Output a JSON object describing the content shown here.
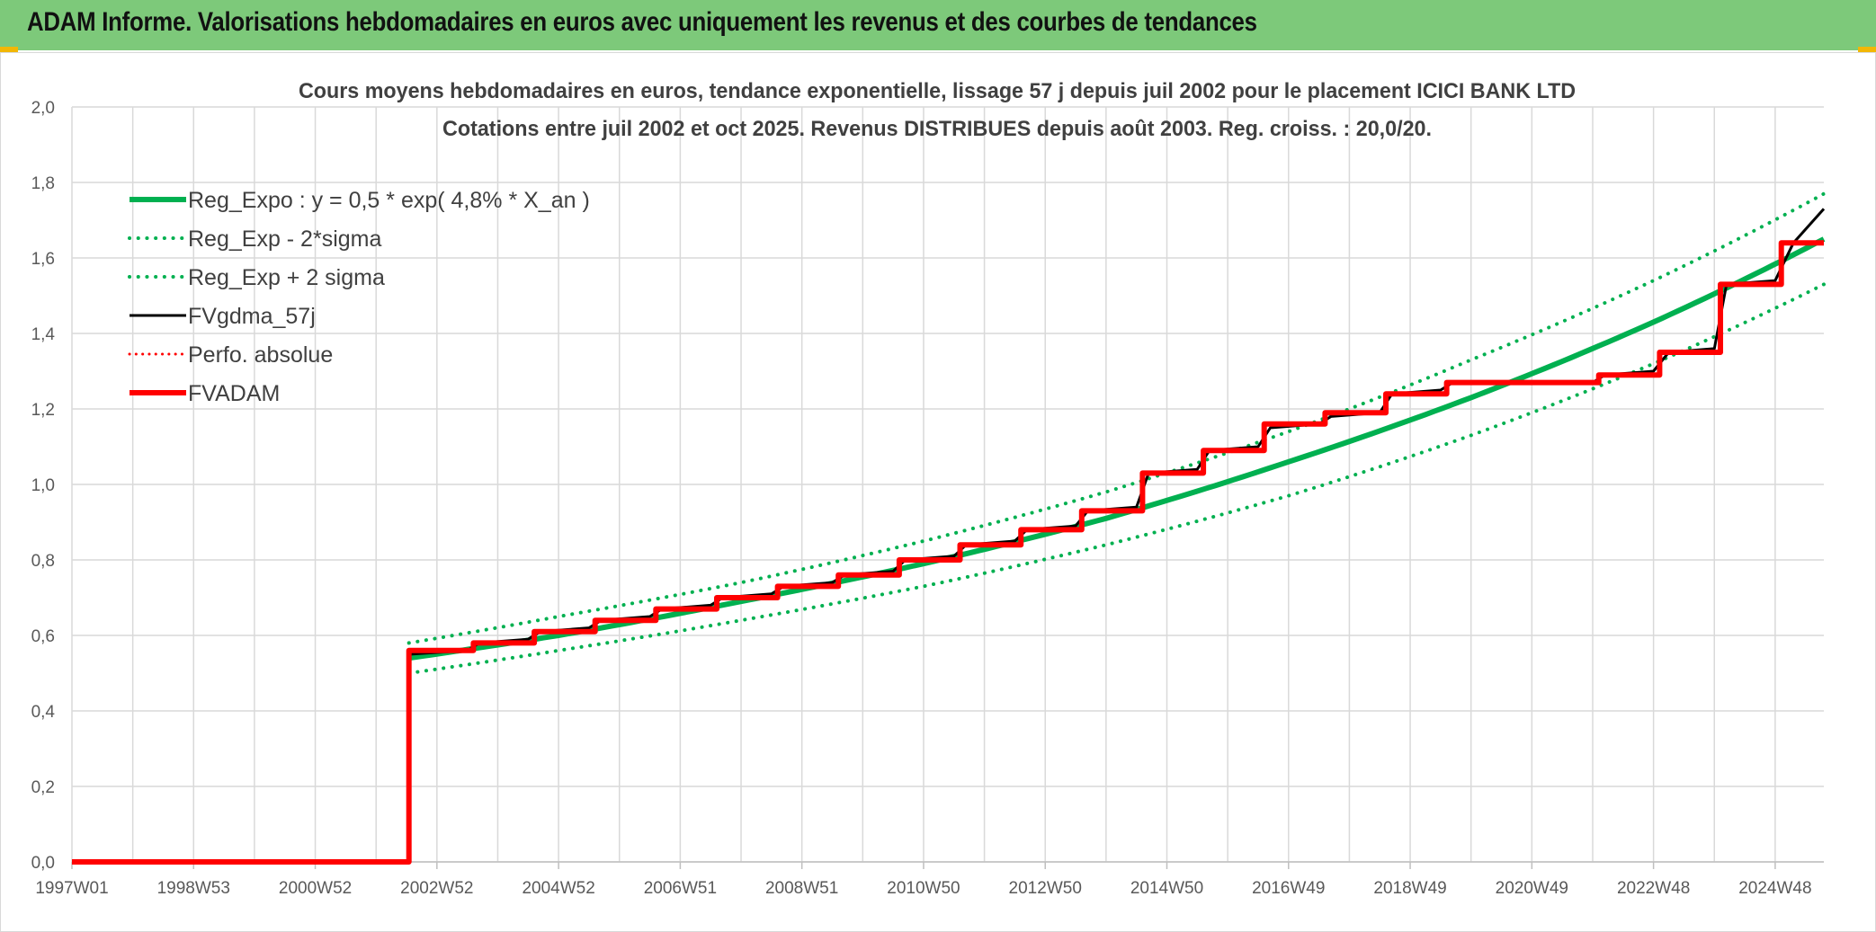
{
  "header": {
    "title": "ADAM Informe. Valorisations hebdomadaires en euros avec uniquement les revenus et des courbes de tendances",
    "background": "#7dc97a"
  },
  "chart_data": {
    "type": "line",
    "title": "Cours moyens hebdomadaires en euros, tendance exponentielle, lissage 57 j depuis juil 2002 pour le placement ICICI BANK LTD",
    "subtitle": "Cotations entre juil 2002 et oct 2025. Revenus DISTRIBUES depuis août 2003. Reg. croiss. : 20,0/20.",
    "xlabel": "",
    "ylabel": "",
    "xlim": [
      1997.0,
      2025.8
    ],
    "ylim": [
      0,
      2.0
    ],
    "y_ticks": [
      "0,0",
      "0,2",
      "0,4",
      "0,6",
      "0,8",
      "1,0",
      "1,2",
      "1,4",
      "1,6",
      "1,8",
      "2,0"
    ],
    "x_ticks": [
      {
        "label": "1997W01",
        "x": 1997.0
      },
      {
        "label": "1998W53",
        "x": 1999.0
      },
      {
        "label": "2000W52",
        "x": 2001.0
      },
      {
        "label": "2002W52",
        "x": 2003.0
      },
      {
        "label": "2004W52",
        "x": 2005.0
      },
      {
        "label": "2006W51",
        "x": 2007.0
      },
      {
        "label": "2008W51",
        "x": 2009.0
      },
      {
        "label": "2010W50",
        "x": 2011.0
      },
      {
        "label": "2012W50",
        "x": 2013.0
      },
      {
        "label": "2014W50",
        "x": 2015.0
      },
      {
        "label": "2016W49",
        "x": 2017.0
      },
      {
        "label": "2018W49",
        "x": 2019.0
      },
      {
        "label": "2020W49",
        "x": 2021.0
      },
      {
        "label": "2022W48",
        "x": 2023.0
      },
      {
        "label": "2024W48",
        "x": 2025.0
      }
    ],
    "grid": true,
    "legend_position": "top-left",
    "series": [
      {
        "name": "Reg_Expo : y = 0,5 * exp( 4,8% *  X_an )",
        "color": "#00b050",
        "style": "solid",
        "width": 6,
        "x": [
          2002.54,
          2005,
          2008,
          2011,
          2014,
          2017,
          2020,
          2023,
          2025.8
        ],
        "y": [
          0.54,
          0.6,
          0.69,
          0.79,
          0.91,
          1.06,
          1.23,
          1.43,
          1.65
        ]
      },
      {
        "name": "Reg_Exp - 2*sigma",
        "color": "#00b050",
        "style": "dotted",
        "width": 4,
        "x": [
          2002.54,
          2005,
          2008,
          2011,
          2014,
          2017,
          2020,
          2023,
          2025.8
        ],
        "y": [
          0.5,
          0.56,
          0.64,
          0.73,
          0.84,
          0.97,
          1.13,
          1.32,
          1.53
        ]
      },
      {
        "name": "Reg_Exp + 2 sigma",
        "color": "#00b050",
        "style": "dotted",
        "width": 4,
        "x": [
          2002.54,
          2005,
          2008,
          2011,
          2014,
          2017,
          2020,
          2023,
          2025.8
        ],
        "y": [
          0.58,
          0.65,
          0.74,
          0.85,
          0.98,
          1.14,
          1.33,
          1.54,
          1.77
        ]
      },
      {
        "name": "FVgdma_57j",
        "color": "#000000",
        "style": "solid",
        "width": 3,
        "x": [
          1997.0,
          2002.54,
          2002.54,
          2003.5,
          2003.7,
          2004.5,
          2004.7,
          2005.5,
          2005.7,
          2006.5,
          2006.7,
          2007.5,
          2007.7,
          2008.5,
          2008.7,
          2009.5,
          2009.7,
          2010.5,
          2010.7,
          2011.5,
          2011.7,
          2012.5,
          2012.7,
          2013.5,
          2013.7,
          2014.5,
          2014.7,
          2015.5,
          2015.7,
          2016.5,
          2016.7,
          2017.5,
          2017.7,
          2018.5,
          2018.7,
          2019.5,
          2019.7,
          2021.0,
          2021.2,
          2022.0,
          2022.2,
          2023.0,
          2023.25,
          2024.0,
          2024.2,
          2025.0,
          2025.3,
          2025.8
        ],
        "y": [
          0.0,
          0.0,
          0.55,
          0.56,
          0.58,
          0.59,
          0.61,
          0.62,
          0.64,
          0.65,
          0.67,
          0.68,
          0.7,
          0.71,
          0.73,
          0.74,
          0.76,
          0.77,
          0.8,
          0.81,
          0.84,
          0.85,
          0.88,
          0.89,
          0.93,
          0.94,
          1.03,
          1.04,
          1.09,
          1.1,
          1.15,
          1.16,
          1.18,
          1.19,
          1.24,
          1.25,
          1.27,
          1.27,
          1.27,
          1.27,
          1.29,
          1.3,
          1.35,
          1.36,
          1.53,
          1.54,
          1.64,
          1.73
        ]
      },
      {
        "name": "Perfo. absolue",
        "color": "#ff0000",
        "style": "dotted",
        "width": 3,
        "x": [],
        "y": []
      },
      {
        "name": "FVADAM",
        "color": "#ff0000",
        "style": "solid",
        "width": 6,
        "x": [
          1997.0,
          2002.54,
          2002.54,
          2003.6,
          2003.6,
          2004.6,
          2004.6,
          2005.6,
          2005.6,
          2006.6,
          2006.6,
          2007.6,
          2007.6,
          2008.6,
          2008.6,
          2009.6,
          2009.6,
          2010.6,
          2010.6,
          2011.6,
          2011.6,
          2012.6,
          2012.6,
          2013.6,
          2013.6,
          2014.6,
          2014.6,
          2015.6,
          2015.6,
          2016.6,
          2016.6,
          2017.6,
          2017.6,
          2018.6,
          2018.6,
          2019.6,
          2019.6,
          2021.1,
          2021.1,
          2022.1,
          2022.1,
          2023.1,
          2023.1,
          2024.1,
          2024.1,
          2025.1,
          2025.1,
          2025.8
        ],
        "y": [
          0.0,
          0.0,
          0.56,
          0.56,
          0.58,
          0.58,
          0.61,
          0.61,
          0.64,
          0.64,
          0.67,
          0.67,
          0.7,
          0.7,
          0.73,
          0.73,
          0.76,
          0.76,
          0.8,
          0.8,
          0.84,
          0.84,
          0.88,
          0.88,
          0.93,
          0.93,
          1.03,
          1.03,
          1.09,
          1.09,
          1.16,
          1.16,
          1.19,
          1.19,
          1.24,
          1.24,
          1.27,
          1.27,
          1.27,
          1.27,
          1.29,
          1.29,
          1.35,
          1.35,
          1.53,
          1.53,
          1.64,
          1.64
        ]
      }
    ]
  }
}
